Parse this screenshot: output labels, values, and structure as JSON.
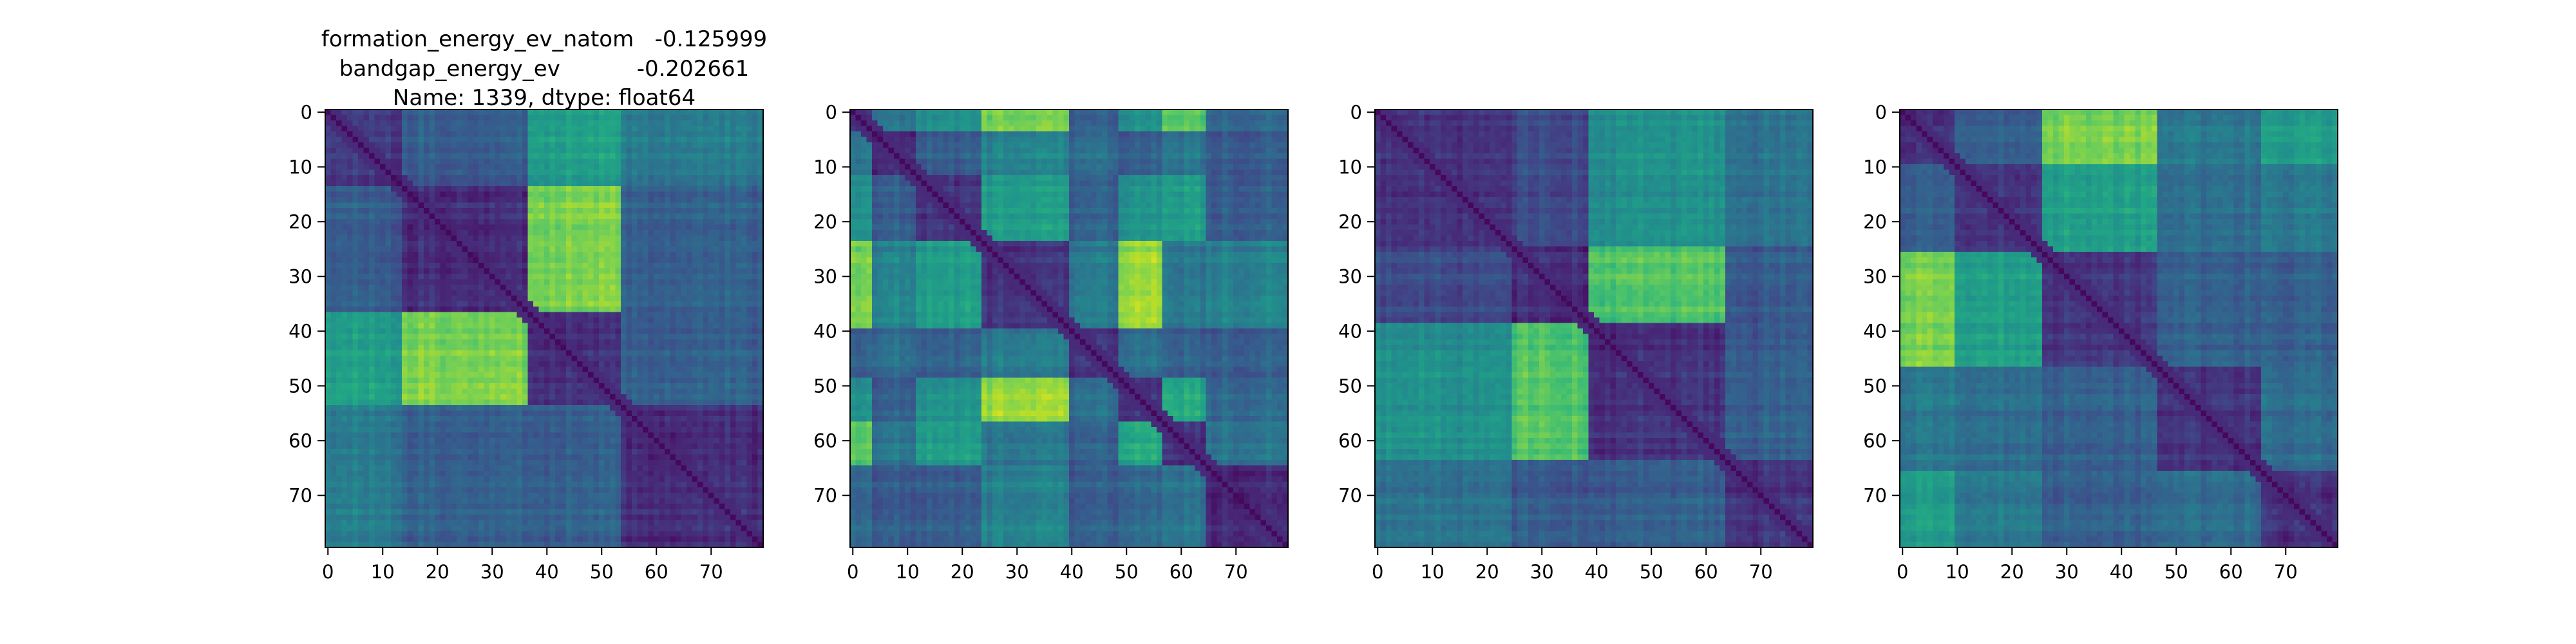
{
  "figure": {
    "title_lines": [
      "formation_energy_ev_natom   -0.125999",
      "bandgap_energy_ev           -0.202661",
      "Name: 1339, dtype: float64"
    ]
  },
  "chart_data": [
    {
      "type": "heatmap",
      "title": "formation_energy_ev_natom   -0.125999\nbandgap_energy_ev           -0.202661\nName: 1339, dtype: float64",
      "size": 80,
      "colormap": "viridis",
      "xlim": [
        0,
        79
      ],
      "ylim": [
        79,
        0
      ],
      "xticks": [
        0,
        10,
        20,
        30,
        40,
        50,
        60,
        70
      ],
      "yticks": [
        0,
        10,
        20,
        30,
        40,
        50,
        60,
        70
      ],
      "block_boundaries": [
        0,
        14,
        37,
        54,
        80
      ],
      "block_levels": [
        [
          0.16,
          0.28,
          0.55,
          0.4
        ],
        [
          0.28,
          0.12,
          0.8,
          0.3
        ],
        [
          0.55,
          0.8,
          0.14,
          0.3
        ],
        [
          0.4,
          0.3,
          0.3,
          0.12
        ]
      ]
    },
    {
      "type": "heatmap",
      "size": 80,
      "colormap": "viridis",
      "xlim": [
        0,
        79
      ],
      "ylim": [
        79,
        0
      ],
      "xticks": [
        0,
        10,
        20,
        30,
        40,
        50,
        60,
        70
      ],
      "yticks": [
        0,
        10,
        20,
        30,
        40,
        50,
        60,
        70
      ],
      "block_boundaries": [
        0,
        4,
        12,
        24,
        40,
        49,
        57,
        65,
        80
      ],
      "block_levels": [
        [
          0.15,
          0.4,
          0.5,
          0.8,
          0.3,
          0.5,
          0.75,
          0.35
        ],
        [
          0.4,
          0.14,
          0.3,
          0.45,
          0.35,
          0.3,
          0.4,
          0.3
        ],
        [
          0.5,
          0.3,
          0.15,
          0.55,
          0.3,
          0.5,
          0.55,
          0.3
        ],
        [
          0.8,
          0.45,
          0.55,
          0.15,
          0.4,
          0.85,
          0.4,
          0.45
        ],
        [
          0.3,
          0.35,
          0.3,
          0.4,
          0.14,
          0.35,
          0.3,
          0.3
        ],
        [
          0.5,
          0.3,
          0.5,
          0.85,
          0.35,
          0.15,
          0.6,
          0.35
        ],
        [
          0.75,
          0.4,
          0.55,
          0.4,
          0.3,
          0.6,
          0.15,
          0.4
        ],
        [
          0.35,
          0.3,
          0.3,
          0.45,
          0.3,
          0.35,
          0.4,
          0.14
        ]
      ]
    },
    {
      "type": "heatmap",
      "size": 80,
      "colormap": "viridis",
      "xlim": [
        0,
        79
      ],
      "ylim": [
        79,
        0
      ],
      "xticks": [
        0,
        10,
        20,
        30,
        40,
        50,
        60,
        70
      ],
      "yticks": [
        0,
        10,
        20,
        30,
        40,
        50,
        60,
        70
      ],
      "block_boundaries": [
        0,
        25,
        39,
        64,
        80
      ],
      "block_levels": [
        [
          0.15,
          0.22,
          0.5,
          0.38
        ],
        [
          0.22,
          0.12,
          0.72,
          0.28
        ],
        [
          0.5,
          0.72,
          0.14,
          0.3
        ],
        [
          0.38,
          0.28,
          0.3,
          0.15
        ]
      ]
    },
    {
      "type": "heatmap",
      "size": 80,
      "colormap": "viridis",
      "xlim": [
        0,
        79
      ],
      "ylim": [
        79,
        0
      ],
      "xticks": [
        0,
        10,
        20,
        30,
        40,
        50,
        60,
        70
      ],
      "yticks": [
        0,
        10,
        20,
        30,
        40,
        50,
        60,
        70
      ],
      "block_boundaries": [
        0,
        10,
        26,
        47,
        66,
        80
      ],
      "block_levels": [
        [
          0.15,
          0.3,
          0.8,
          0.4,
          0.55
        ],
        [
          0.3,
          0.14,
          0.55,
          0.35,
          0.4
        ],
        [
          0.8,
          0.55,
          0.15,
          0.3,
          0.3
        ],
        [
          0.4,
          0.35,
          0.3,
          0.14,
          0.35
        ],
        [
          0.55,
          0.4,
          0.3,
          0.35,
          0.14
        ]
      ]
    }
  ]
}
